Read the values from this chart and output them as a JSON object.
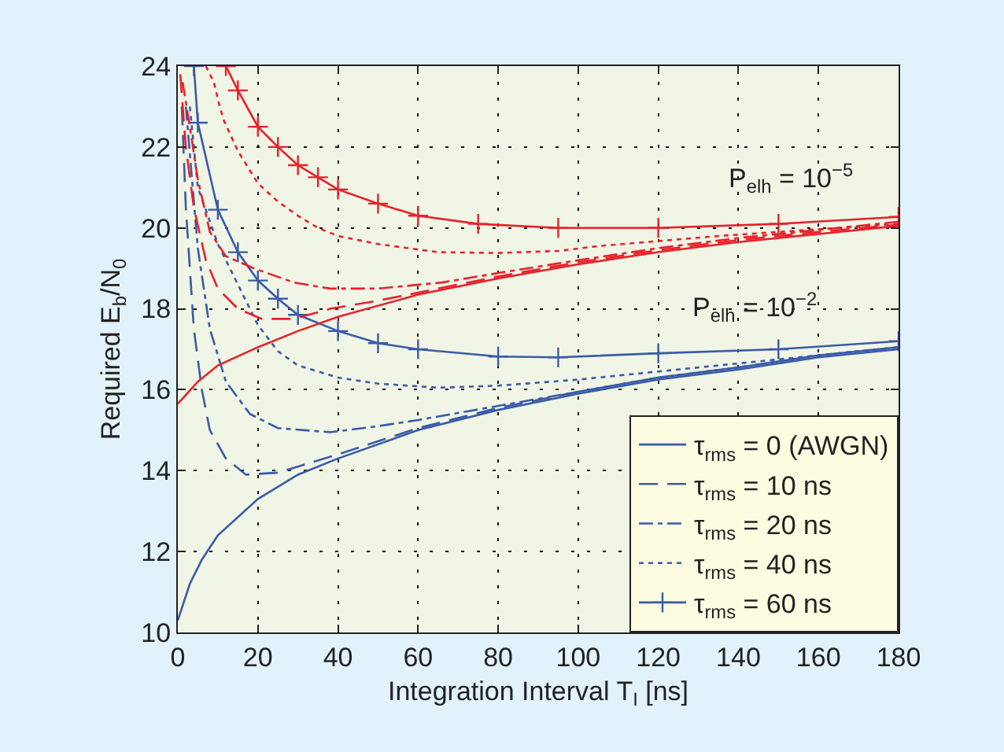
{
  "chart_data": {
    "type": "line",
    "xlabel": "Integration Interval T$_{I}$ [ns]",
    "ylabel": "Required E$_{b}$/N$_{0}$",
    "xlim": [
      0,
      180
    ],
    "xticks": [
      0,
      20,
      40,
      60,
      80,
      100,
      120,
      140,
      160,
      180
    ],
    "ylim": [
      10,
      24
    ],
    "yticks": [
      10,
      12,
      14,
      16,
      18,
      20,
      22,
      24
    ],
    "grid": true,
    "legend": "bottom right",
    "annotations": [
      "P$_{elh}$ = 10$^{−5}$",
      "P$_{elh}$ = 10$^{−2}$"
    ],
    "series": [
      {
        "color": "#e8202a",
        "line_style": "solid",
        "marker": "none",
        "x": [
          0,
          5,
          10,
          20,
          30,
          40,
          60,
          80,
          100,
          120,
          140,
          160,
          180
        ],
        "values": [
          15.65,
          16.2,
          16.6,
          17.05,
          17.45,
          17.8,
          18.35,
          18.75,
          19.1,
          19.4,
          19.65,
          19.85,
          20.05
        ]
      },
      {
        "color": "#e8202a",
        "line_style": "dashed",
        "marker": "none",
        "x": [
          0.6,
          2,
          4,
          7,
          10,
          15,
          21,
          29,
          38,
          50,
          60,
          80,
          100,
          120,
          140,
          160,
          180
        ],
        "values": [
          23.8,
          22,
          20.5,
          19.2,
          18.5,
          18.0,
          17.75,
          17.75,
          18.0,
          18.2,
          18.4,
          18.8,
          19.15,
          19.45,
          19.7,
          19.9,
          20.08
        ]
      },
      {
        "color": "#e8202a",
        "line_style": "dashdot",
        "marker": "none",
        "x": [
          1.2,
          3,
          5,
          8,
          12,
          19,
          29,
          38,
          50,
          66,
          81,
          100,
          120,
          140,
          160,
          180
        ],
        "values": [
          23.6,
          22.5,
          21.2,
          19.9,
          19.3,
          19.0,
          18.65,
          18.5,
          18.5,
          18.65,
          18.9,
          19.2,
          19.5,
          19.75,
          19.95,
          20.15
        ]
      },
      {
        "color": "#e8202a",
        "line_style": "dotted",
        "marker": "none",
        "x": [
          7,
          9,
          10.2,
          11.5,
          15,
          20,
          25,
          30,
          35,
          40,
          45,
          50,
          65,
          80,
          95,
          105,
          135,
          180
        ],
        "values": [
          24,
          23.6,
          23.1,
          22.65,
          21.9,
          21.1,
          20.65,
          20.3,
          20.0,
          19.8,
          19.7,
          19.6,
          19.4,
          19.38,
          19.43,
          19.55,
          19.8,
          20.1
        ]
      },
      {
        "color": "#e8202a",
        "line_style": "solid",
        "marker": "cross",
        "x": [
          12,
          15,
          20,
          25,
          30,
          35,
          40,
          50,
          60,
          75,
          95,
          120,
          150,
          180
        ],
        "values": [
          24,
          23.4,
          22.5,
          22.0,
          21.55,
          21.25,
          20.95,
          20.6,
          20.3,
          20.1,
          20.0,
          20.0,
          20.1,
          20.27
        ]
      },
      {
        "name": "τ$_{rms}$ = 0 (AWGN)",
        "color": "#3a5ba8",
        "line_style": "solid",
        "marker": "none",
        "x": [
          0,
          3,
          6,
          10,
          20,
          30,
          40,
          60,
          80,
          100,
          120,
          140,
          160,
          180
        ],
        "values": [
          10.3,
          11.2,
          11.8,
          12.4,
          13.3,
          13.9,
          14.3,
          15.0,
          15.5,
          15.9,
          16.25,
          16.5,
          16.8,
          17.0
        ]
      },
      {
        "name": "τ$_{rms}$ = 10 ns",
        "color": "#3a5ba8",
        "line_style": "dashed",
        "marker": "none",
        "x": [
          1,
          2,
          4,
          6,
          8,
          12,
          17,
          25,
          40,
          60,
          80,
          100,
          120,
          140,
          160,
          180
        ],
        "values": [
          23,
          20.5,
          17.5,
          16,
          15,
          14.3,
          13.9,
          13.95,
          14.4,
          15.05,
          15.55,
          15.95,
          16.3,
          16.55,
          16.85,
          17.05
        ]
      },
      {
        "name": "τ$_{rms}$ = 20 ns",
        "color": "#3a5ba8",
        "line_style": "dashdot",
        "marker": "none",
        "x": [
          2,
          5,
          8,
          12,
          18,
          25,
          38,
          50,
          60,
          80,
          100,
          120,
          140,
          160,
          180
        ],
        "values": [
          23,
          19.5,
          17.5,
          16.2,
          15.4,
          15.05,
          14.95,
          15.1,
          15.25,
          15.6,
          15.95,
          16.3,
          16.55,
          16.85,
          17.05
        ]
      },
      {
        "name": "τ$_{rms}$ = 40 ns",
        "color": "#3a5ba8",
        "line_style": "dotted",
        "marker": "none",
        "x": [
          3,
          5,
          10,
          15,
          20,
          25,
          30,
          40,
          50,
          65,
          80,
          100,
          120,
          140,
          160,
          180
        ],
        "values": [
          23,
          21,
          19.6,
          18.6,
          17.6,
          16.95,
          16.6,
          16.3,
          16.15,
          16.05,
          16.1,
          16.25,
          16.45,
          16.65,
          16.85,
          17.05
        ]
      },
      {
        "name": "τ$_{rms}$ = 60 ns",
        "color": "#3a5ba8",
        "line_style": "solid",
        "marker": "cross",
        "x": [
          4,
          5,
          10,
          15,
          20,
          25,
          30,
          40,
          50,
          60,
          80,
          95,
          120,
          150,
          180
        ],
        "values": [
          24,
          22.6,
          20.45,
          19.4,
          18.7,
          18.25,
          17.85,
          17.45,
          17.15,
          17.0,
          16.82,
          16.8,
          16.9,
          17.0,
          17.2
        ]
      }
    ]
  }
}
